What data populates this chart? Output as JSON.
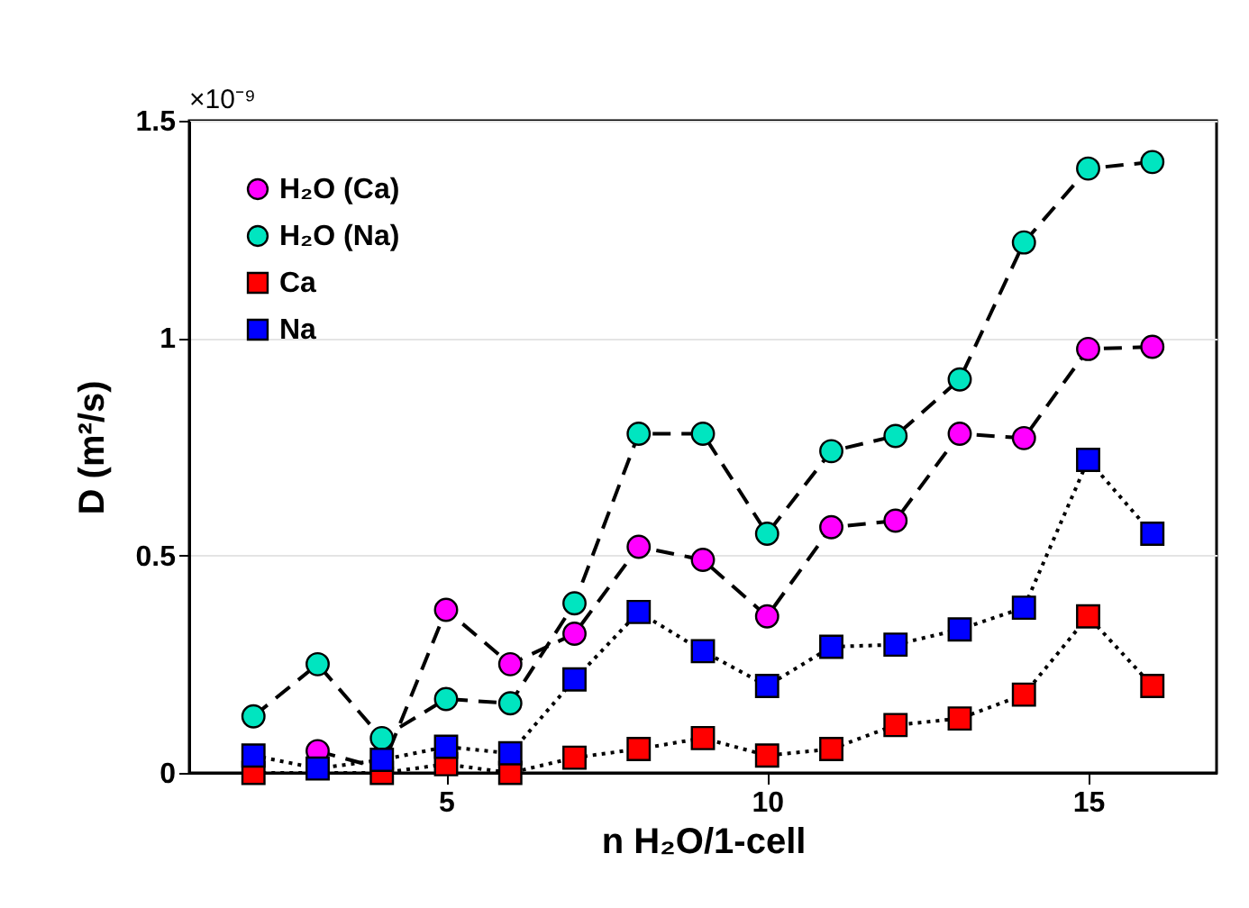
{
  "chart_data": {
    "type": "line",
    "xlabel": "n H₂O/1-cell",
    "ylabel": "D (m²/s)",
    "annotations": [
      "×10⁻⁹"
    ],
    "x": [
      2,
      3,
      4,
      5,
      6,
      7,
      8,
      9,
      10,
      11,
      12,
      13,
      14,
      15,
      16
    ],
    "series": [
      {
        "name": "H₂O (Ca)",
        "color": "#ff00ff",
        "marker": "circle",
        "line_style": "dashed",
        "values": [
          null,
          0.05,
          0.01,
          0.375,
          0.25,
          0.32,
          0.52,
          0.49,
          0.36,
          0.565,
          0.58,
          0.78,
          0.77,
          0.975,
          0.98
        ]
      },
      {
        "name": "H₂O (Na)",
        "color": "#00e5c0",
        "marker": "circle",
        "line_style": "dashed",
        "values": [
          0.13,
          0.25,
          0.08,
          0.17,
          0.16,
          0.39,
          0.78,
          0.78,
          0.55,
          0.74,
          0.775,
          0.905,
          1.22,
          1.39,
          1.405
        ]
      },
      {
        "name": "Ca",
        "color": "#ff0000",
        "marker": "square",
        "line_style": "dotted",
        "values": [
          0.0,
          null,
          0.0,
          0.02,
          0.0,
          0.035,
          0.055,
          0.08,
          0.04,
          0.055,
          0.11,
          0.125,
          0.18,
          0.36,
          0.2
        ]
      },
      {
        "name": "Na",
        "color": "#0000ff",
        "marker": "square",
        "line_style": "dotted",
        "values": [
          0.04,
          0.01,
          0.03,
          0.06,
          0.045,
          0.215,
          0.37,
          0.28,
          0.2,
          0.29,
          0.295,
          0.33,
          0.38,
          0.72,
          0.55
        ]
      }
    ],
    "xlim": [
      1,
      17
    ],
    "xticks": [
      5,
      10,
      15
    ],
    "ylim": [
      0,
      1.5
    ],
    "yticks": [
      0,
      0.5,
      1,
      1.5
    ],
    "grid": "y",
    "legend": "top left"
  }
}
